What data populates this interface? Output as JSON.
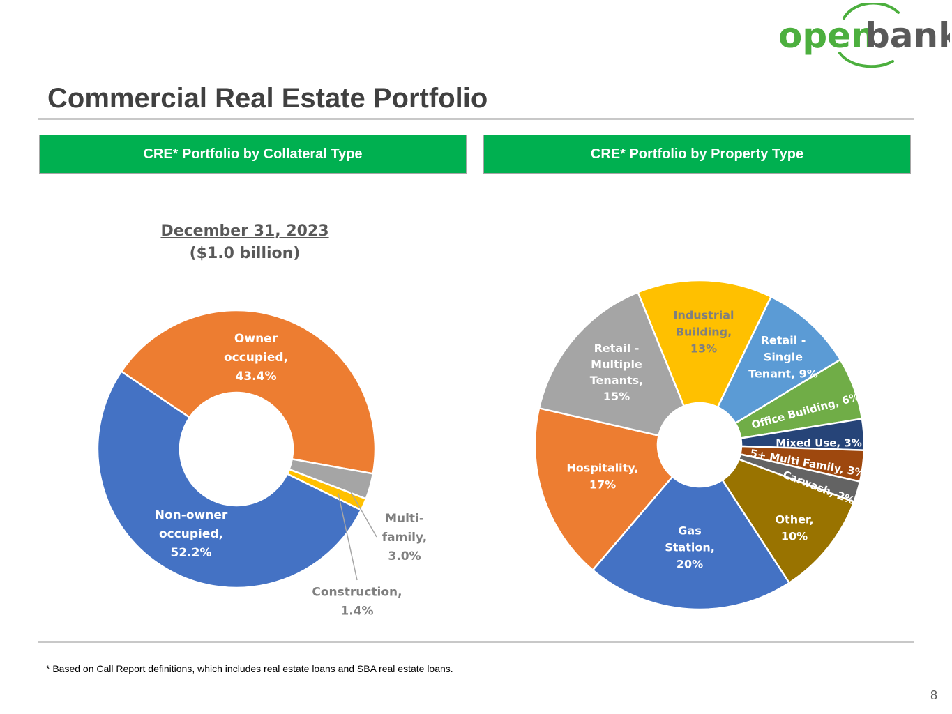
{
  "logo": {
    "word1": "open",
    "word2": "bank",
    "green": "#4caf3e",
    "gray": "#595959"
  },
  "page_title": "Commercial Real Estate Portfolio",
  "left_header": "CRE* Portfolio by Collateral Type",
  "right_header": "CRE* Portfolio by Property Type",
  "footnote": "* Based on Call Report definitions, which includes real estate loans and SBA real estate loans.",
  "page_number": "8",
  "colors": {
    "header_green": "#00b050",
    "title_gray": "#404040"
  },
  "chart_data": [
    {
      "type": "pie",
      "style": "donut",
      "title": "December 31, 2023",
      "subtitle": "($1.0 billion)",
      "categories": [
        "Owner occupied",
        "Multi-family",
        "Construction",
        "Non-owner occupied"
      ],
      "values": [
        43.4,
        3.0,
        1.4,
        52.2
      ],
      "labels": [
        "Owner occupied, 43.4%",
        "Multi-family, 3.0%",
        "Construction, 1.4%",
        "Non-owner occupied, 52.2%"
      ],
      "label_lines": [
        [
          "Owner",
          "occupied,",
          "43.4%"
        ],
        [
          "Multi-",
          "family,",
          "3.0%"
        ],
        [
          "Construction,",
          "1.4%"
        ],
        [
          "Non-owner",
          "occupied,",
          "52.2%"
        ]
      ],
      "colors": [
        "#ed7d31",
        "#a5a5a5",
        "#ffc000",
        "#4472c4"
      ]
    },
    {
      "type": "pie",
      "style": "donut",
      "title": "",
      "categories": [
        "Industrial Building",
        "Retail - Single Tenant",
        "Office Building",
        "Mixed Use",
        "5+ Multi Family",
        "Carwash",
        "Other",
        "Gas Station",
        "Hospitality",
        "Retail - Multiple Tenants"
      ],
      "values": [
        13,
        9,
        6,
        3,
        3,
        2,
        10,
        20,
        17,
        15
      ],
      "labels": [
        "Industrial Building, 13%",
        "Retail - Single Tenant, 9%",
        "Office Building, 6%",
        "Mixed Use, 3%",
        "5+ Multi Family, 3%",
        "Carwash, 2%",
        "Other, 10%",
        "Gas Station, 20%",
        "Hospitality, 17%",
        "Retail - Multiple Tenants, 15%"
      ],
      "label_lines": [
        [
          "Industrial",
          "Building,",
          "13%"
        ],
        [
          "Retail -",
          "Single",
          "Tenant, 9%"
        ],
        [
          "Office Building, 6%"
        ],
        [
          "Mixed Use, 3%"
        ],
        [
          "5+ Multi Family, 3%"
        ],
        [
          "Carwash, 2%"
        ],
        [
          "Other,",
          "10%"
        ],
        [
          "Gas",
          "Station,",
          "20%"
        ],
        [
          "Hospitality,",
          "17%"
        ],
        [
          "Retail -",
          "Multiple",
          "Tenants,",
          "15%"
        ]
      ],
      "colors": [
        "#ffc000",
        "#5b9bd5",
        "#70ad47",
        "#264478",
        "#9e480e",
        "#636363",
        "#997300",
        "#4472c4",
        "#ed7d31",
        "#a5a5a5"
      ]
    }
  ]
}
